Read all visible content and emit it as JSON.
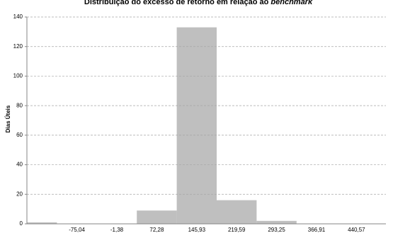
{
  "chart_data": {
    "type": "histogram",
    "title": "Distribuição do excesso de retorno em relação ao",
    "title_emphasis": "benchmark",
    "y_label": "Dias Úteis",
    "categories": [
      null,
      "-75,04",
      "-1,38",
      "72,28",
      "145,93",
      "219,59",
      "293,25",
      "366,91",
      "440,57"
    ],
    "values": [
      1,
      0,
      0,
      9,
      133,
      16,
      2,
      0,
      0
    ],
    "color": "#bfbfbf",
    "ylim": [
      0,
      140
    ],
    "yticks": [
      0,
      20,
      40,
      60,
      80,
      100,
      120,
      140
    ],
    "grid": true
  }
}
